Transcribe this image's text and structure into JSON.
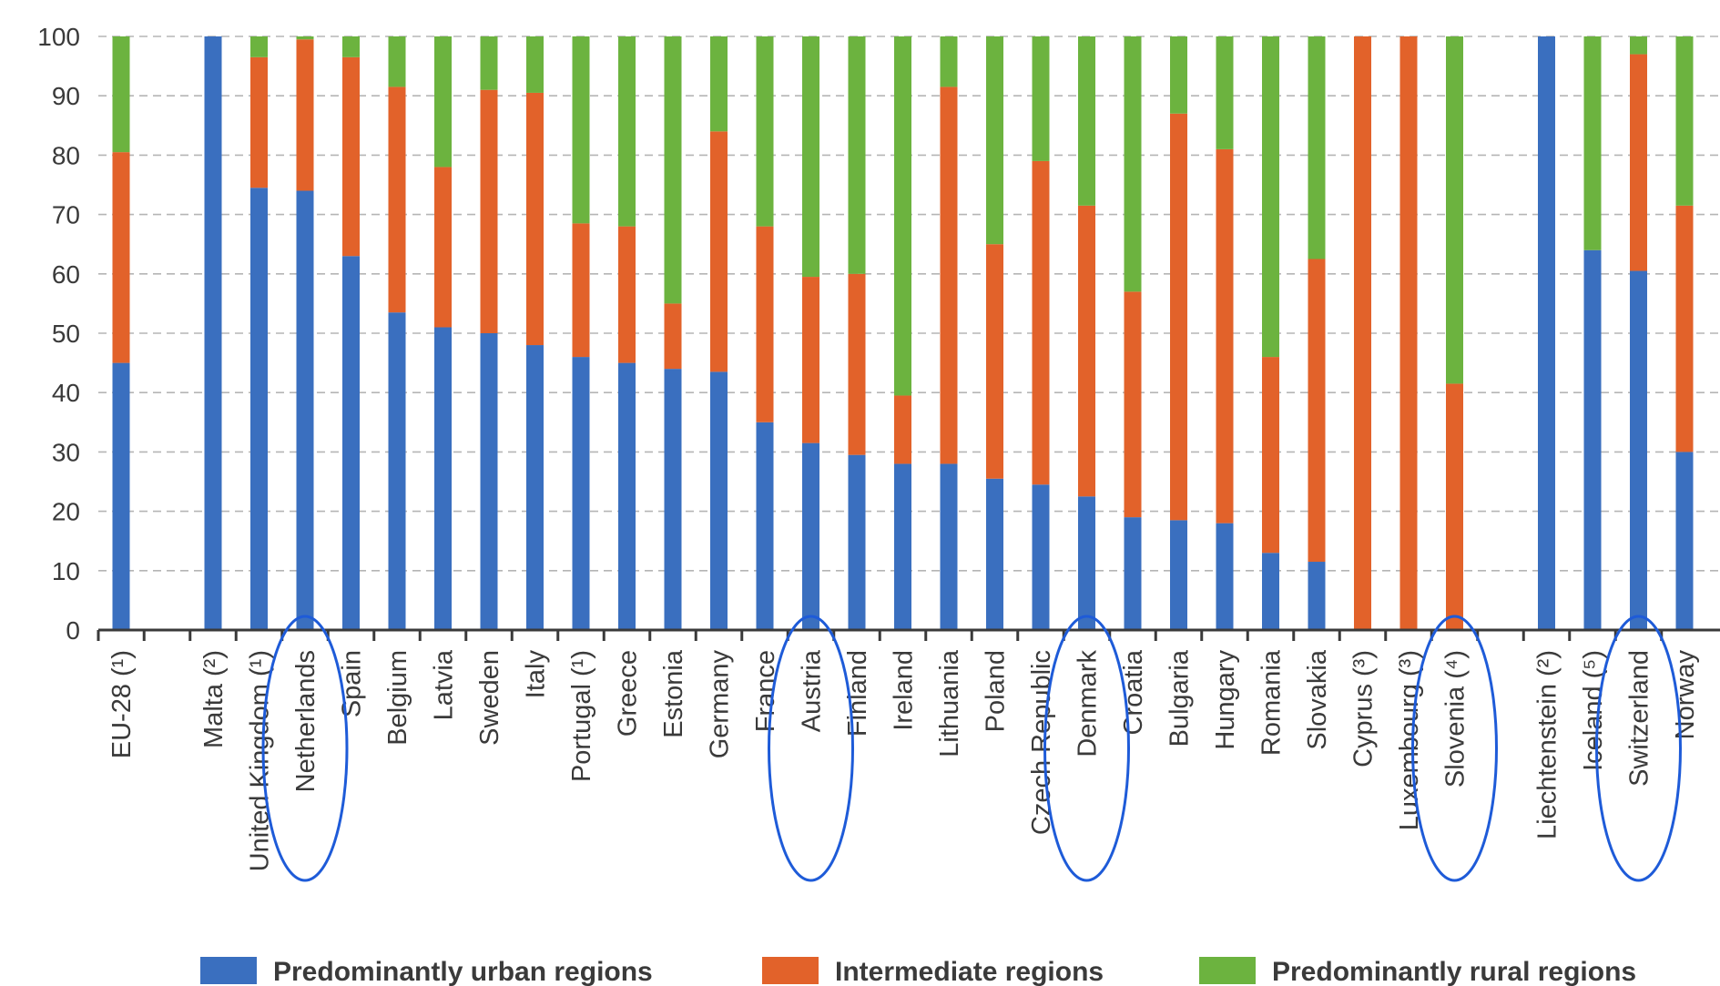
{
  "chart_data": {
    "type": "bar",
    "stacked": true,
    "orientation": "vertical",
    "ylim": [
      0,
      100
    ],
    "yticks": [
      0,
      10,
      20,
      30,
      40,
      50,
      60,
      70,
      80,
      90,
      100
    ],
    "grid": true,
    "legend_position": "bottom",
    "categories": [
      "EU-28 (¹)",
      "",
      "Malta (²)",
      "United Kingdom (¹)",
      "Netherlands",
      "Spain",
      "Belgium",
      "Latvia",
      "Sweden",
      "Italy",
      "Portugal (¹)",
      "Greece",
      "Estonia",
      "Germany",
      "France",
      "Austria",
      "Finland",
      "Ireland",
      "Lithuania",
      "Poland",
      "Czech Republic",
      "Denmark",
      "Croatia",
      "Bulgaria",
      "Hungary",
      "Romania",
      "Slovakia",
      "Cyprus (³)",
      "Luxembourg (³)",
      "Slovenia (⁴)",
      "",
      "Liechtenstein (²)",
      "Iceland (⁵)",
      "Switzerland",
      "Norway"
    ],
    "series": [
      {
        "name": "Predominantly urban regions",
        "color": "#3a6fbf",
        "values": [
          45,
          null,
          100,
          74.5,
          74,
          63,
          53.5,
          51,
          50,
          48,
          46,
          45,
          44,
          43.5,
          35,
          31.5,
          29.5,
          28,
          28,
          25.5,
          24.5,
          22.5,
          19,
          18.5,
          18,
          13,
          11.5,
          0,
          0,
          0,
          null,
          100,
          64,
          60.5,
          30
        ]
      },
      {
        "name": "Intermediate regions",
        "color": "#e2622a",
        "values": [
          35.5,
          null,
          0,
          22,
          25.5,
          33.5,
          38,
          27,
          41,
          42.5,
          22.5,
          23,
          11,
          40.5,
          33,
          28,
          30.5,
          11.5,
          63.5,
          39.5,
          54.5,
          49,
          38,
          68.5,
          63,
          33,
          51,
          100,
          100,
          41.5,
          null,
          0,
          0,
          36.5,
          41.5
        ]
      },
      {
        "name": "Predominantly rural regions",
        "color": "#6cb33f",
        "values": [
          19.5,
          null,
          0,
          3.5,
          0.5,
          3.5,
          8.5,
          22,
          9,
          9.5,
          31.5,
          32,
          45,
          16,
          32,
          40.5,
          40,
          60.5,
          8.5,
          35,
          21,
          28.5,
          43,
          13,
          19,
          54,
          37.5,
          0,
          0,
          58.5,
          null,
          0,
          36,
          3,
          28.5
        ]
      }
    ],
    "highlighted": [
      "Netherlands",
      "Austria",
      "Denmark",
      "Slovenia (⁴)",
      "Switzerland"
    ],
    "title": "",
    "xlabel": "",
    "ylabel": ""
  }
}
